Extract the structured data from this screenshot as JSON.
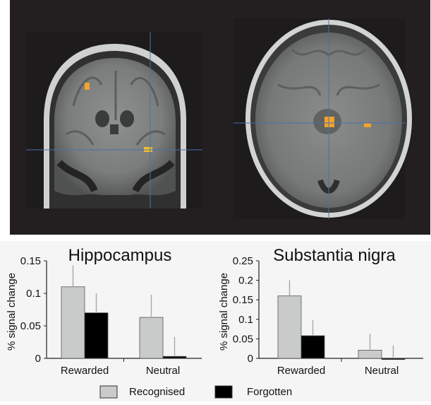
{
  "figure": {
    "colors": {
      "recognised": "#c8cbc9",
      "forgotten": "#000000",
      "error_bar": "#a7aaa8",
      "mri_activation": "#f3a32b",
      "crosshair": "#4a6fb0"
    }
  },
  "legend": {
    "placement": "bottom-center",
    "items": [
      {
        "label": "Recognised",
        "color": "#c8cbc9"
      },
      {
        "label": "Forgotten",
        "color": "#000000"
      }
    ]
  },
  "chart_data": [
    {
      "type": "bar",
      "title": "Hippocampus",
      "ylabel": "% signal change",
      "categories": [
        "Rewarded",
        "Neutral"
      ],
      "ylim": [
        0,
        0.15
      ],
      "yticks": [
        "0",
        "0.05",
        "0.1",
        "0.15"
      ],
      "ytick_values": [
        0,
        0.05,
        0.1,
        0.15
      ],
      "grid": false,
      "series": [
        {
          "name": "Recognised",
          "values": [
            0.11,
            0.063
          ],
          "errors": [
            0.033,
            0.035
          ]
        },
        {
          "name": "Forgotten",
          "values": [
            0.07,
            0.003
          ],
          "errors": [
            0.03,
            0.03
          ]
        }
      ]
    },
    {
      "type": "bar",
      "title": "Substantia nigra",
      "ylabel": "% signal change",
      "categories": [
        "Rewarded",
        "Neutral"
      ],
      "ylim": [
        0,
        0.25
      ],
      "yticks": [
        "0",
        "0.05",
        "0.1",
        "0.15",
        "0.2",
        "0.25"
      ],
      "ytick_values": [
        0,
        0.05,
        0.1,
        0.15,
        0.2,
        0.25
      ],
      "grid": false,
      "series": [
        {
          "name": "Recognised",
          "values": [
            0.16,
            0.021
          ],
          "errors": [
            0.04,
            0.042
          ]
        },
        {
          "name": "Forgotten",
          "values": [
            0.058,
            -0.003
          ],
          "errors": [
            0.04,
            0.033
          ]
        }
      ]
    }
  ]
}
